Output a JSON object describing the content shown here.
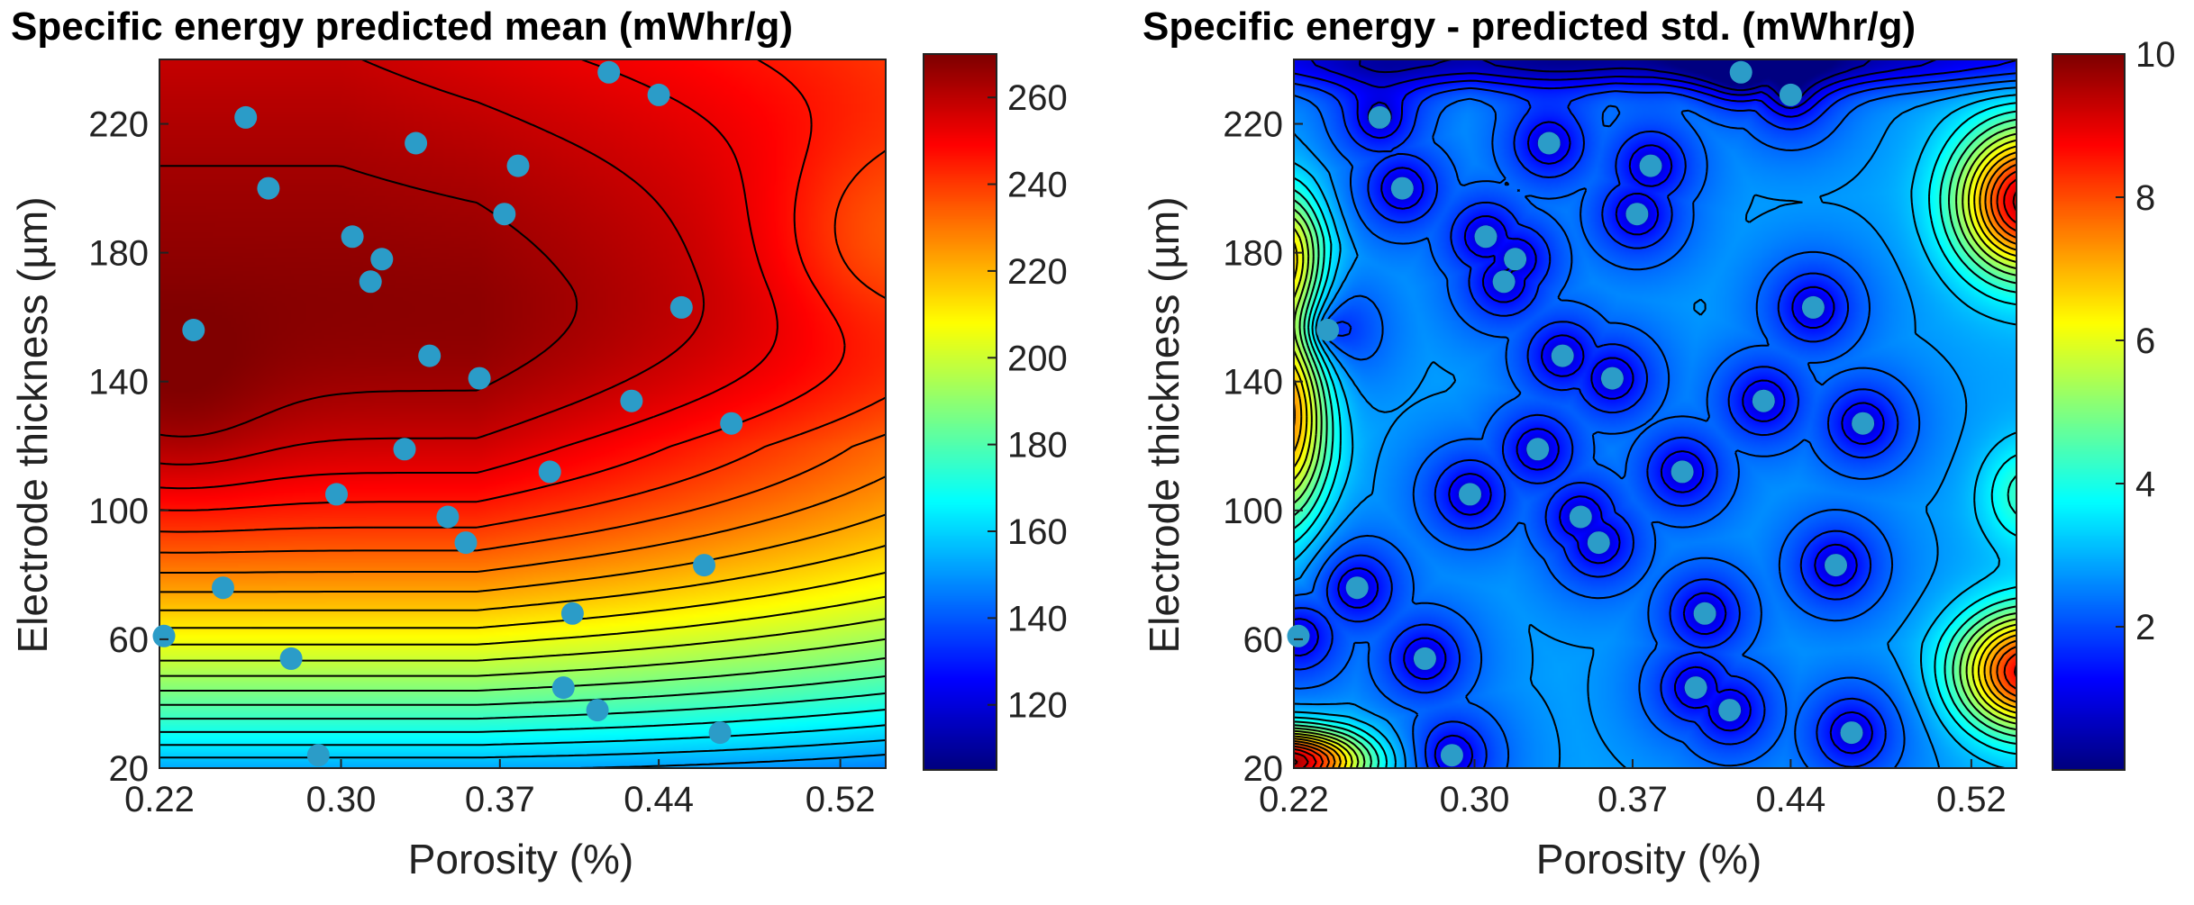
{
  "chart_data": [
    {
      "type": "contour",
      "title": "Specific energy predicted mean (mWhr/g)",
      "xlabel": "Porosity (%)",
      "ylabel": "Electrode thickness (µm)",
      "xlim": [
        0.22,
        0.54
      ],
      "ylim": [
        20,
        240
      ],
      "xticks": [
        0.22,
        0.3,
        0.37,
        0.44,
        0.52
      ],
      "xtick_labels": [
        "0.22",
        "0.30",
        "0.37",
        "0.44",
        "0.52"
      ],
      "yticks": [
        20,
        60,
        100,
        140,
        180,
        220
      ],
      "ytick_labels": [
        "20",
        "60",
        "100",
        "140",
        "180",
        "220"
      ],
      "colorbar": {
        "range": [
          105,
          270
        ],
        "ticks": [
          120,
          140,
          160,
          180,
          200,
          220,
          240,
          260
        ],
        "tick_labels": [
          "120",
          "140",
          "160",
          "180",
          "200",
          "220",
          "240",
          "260"
        ],
        "colormap": "jet"
      },
      "surface": "mean",
      "points": [
        [
          0.222,
          61
        ],
        [
          0.235,
          156
        ],
        [
          0.248,
          76
        ],
        [
          0.258,
          222
        ],
        [
          0.268,
          200
        ],
        [
          0.278,
          54
        ],
        [
          0.29,
          24
        ],
        [
          0.298,
          105
        ],
        [
          0.305,
          185
        ],
        [
          0.313,
          171
        ],
        [
          0.318,
          178
        ],
        [
          0.328,
          119
        ],
        [
          0.333,
          214
        ],
        [
          0.339,
          148
        ],
        [
          0.347,
          98
        ],
        [
          0.355,
          90
        ],
        [
          0.361,
          141
        ],
        [
          0.372,
          192
        ],
        [
          0.378,
          207
        ],
        [
          0.392,
          112
        ],
        [
          0.398,
          45
        ],
        [
          0.402,
          68
        ],
        [
          0.413,
          38
        ],
        [
          0.418,
          236
        ],
        [
          0.428,
          134
        ],
        [
          0.44,
          229
        ],
        [
          0.45,
          163
        ],
        [
          0.46,
          83
        ],
        [
          0.467,
          31
        ],
        [
          0.472,
          127
        ]
      ]
    },
    {
      "type": "contour",
      "title": "Specific energy - predicted std. (mWhr/g)",
      "xlabel": "Porosity (%)",
      "ylabel": "Electrode thickness (µm)",
      "xlim": [
        0.22,
        0.54
      ],
      "ylim": [
        20,
        240
      ],
      "xticks": [
        0.22,
        0.3,
        0.37,
        0.44,
        0.52
      ],
      "xtick_labels": [
        "0.22",
        "0.30",
        "0.37",
        "0.44",
        "0.52"
      ],
      "yticks": [
        20,
        60,
        100,
        140,
        180,
        220
      ],
      "ytick_labels": [
        "20",
        "60",
        "100",
        "140",
        "180",
        "220"
      ],
      "colorbar": {
        "range": [
          0,
          10
        ],
        "ticks": [
          2,
          4,
          6,
          8,
          10
        ],
        "tick_labels": [
          "2",
          "4",
          "6",
          "8",
          "10"
        ],
        "colormap": "jet"
      },
      "surface": "std",
      "points": [
        [
          0.222,
          61
        ],
        [
          0.235,
          156
        ],
        [
          0.248,
          76
        ],
        [
          0.258,
          222
        ],
        [
          0.268,
          200
        ],
        [
          0.278,
          54
        ],
        [
          0.29,
          24
        ],
        [
          0.298,
          105
        ],
        [
          0.305,
          185
        ],
        [
          0.313,
          171
        ],
        [
          0.318,
          178
        ],
        [
          0.328,
          119
        ],
        [
          0.333,
          214
        ],
        [
          0.339,
          148
        ],
        [
          0.347,
          98
        ],
        [
          0.355,
          90
        ],
        [
          0.361,
          141
        ],
        [
          0.372,
          192
        ],
        [
          0.378,
          207
        ],
        [
          0.392,
          112
        ],
        [
          0.398,
          45
        ],
        [
          0.402,
          68
        ],
        [
          0.413,
          38
        ],
        [
          0.418,
          236
        ],
        [
          0.428,
          134
        ],
        [
          0.44,
          229
        ],
        [
          0.45,
          163
        ],
        [
          0.46,
          83
        ],
        [
          0.467,
          31
        ],
        [
          0.472,
          127
        ]
      ]
    }
  ],
  "colors": {
    "point": "#2b9cc8",
    "contour_line": "#000000"
  }
}
